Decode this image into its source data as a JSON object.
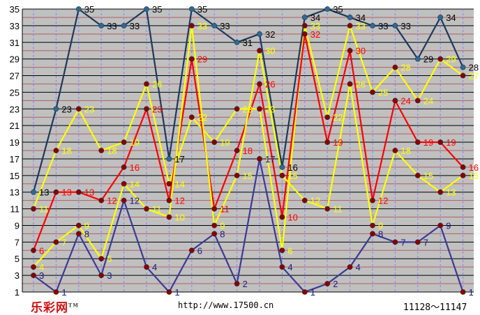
{
  "chart_data": {
    "type": "line",
    "title": "",
    "xlabel": "",
    "ylabel": "",
    "ylim": [
      1,
      35
    ],
    "y_ticks": [
      1,
      3,
      5,
      7,
      9,
      11,
      13,
      15,
      17,
      19,
      21,
      23,
      25,
      27,
      29,
      31,
      33,
      35
    ],
    "grid": true,
    "x": [
      "11128",
      "11129",
      "11130",
      "11131",
      "11132",
      "11133",
      "11134",
      "11135",
      "11136",
      "11137",
      "11138",
      "11139",
      "11140",
      "11141",
      "11142",
      "11143",
      "11144",
      "11145",
      "11146",
      "11147"
    ],
    "series": [
      {
        "color": "#1c3a5c",
        "label_color": "#000000",
        "values": [
          13,
          23,
          35,
          33,
          33,
          35,
          17,
          35,
          33,
          31,
          32,
          16,
          34,
          35,
          34,
          33,
          33,
          29,
          34,
          28
        ]
      },
      {
        "color": "#ffff00",
        "label_color": "#ffff00",
        "values": [
          11,
          18,
          23,
          18,
          19,
          26,
          14,
          22,
          19,
          23,
          23,
          6,
          33,
          22,
          33,
          25,
          28,
          24,
          29,
          27
        ]
      },
      {
        "color": "#ff0000",
        "label_color": "#ff0000",
        "values": [
          6,
          13,
          13,
          12,
          16,
          23,
          12,
          29,
          11,
          18,
          26,
          10,
          32,
          19,
          30,
          12,
          24,
          19,
          19,
          16
        ]
      },
      {
        "color": "#ffff00",
        "label_color": "#ffff00",
        "values": [
          4,
          7,
          9,
          5,
          14,
          11,
          10,
          33,
          9,
          15,
          30,
          15,
          12,
          11,
          26,
          9,
          18,
          15,
          13,
          15
        ]
      },
      {
        "color": "#3a3a9a",
        "label_color": "#1a1a80",
        "values": [
          3,
          1,
          8,
          3,
          12,
          4,
          1,
          6,
          8,
          2,
          17,
          4,
          1,
          2,
          4,
          8,
          7,
          7,
          9,
          1
        ]
      }
    ]
  },
  "footer": {
    "brand": "乐彩网",
    "brand_mark": "TM",
    "url": "http://www.17500.cn",
    "range": "11128～11147"
  }
}
